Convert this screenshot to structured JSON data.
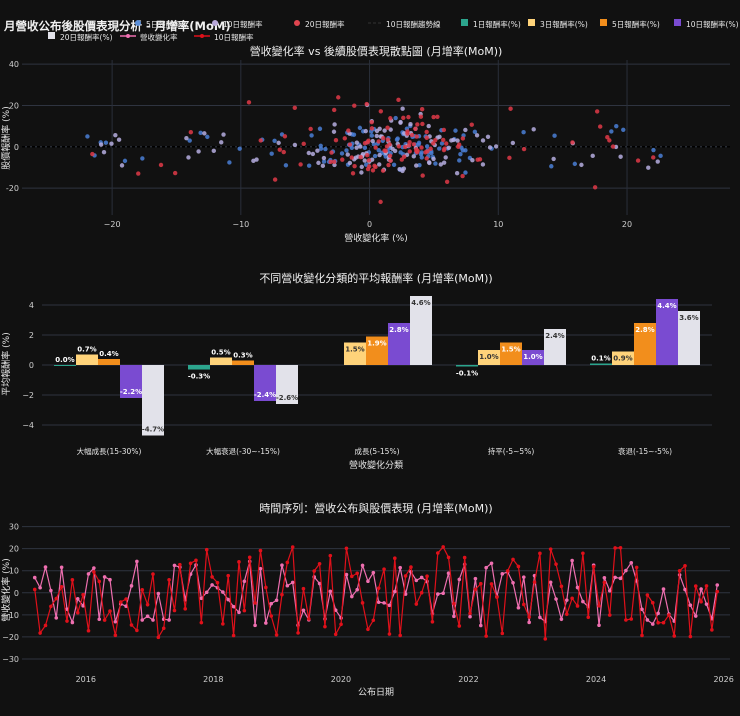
{
  "page_title": "月營收公布後股價表現分析 - 月增率(MoM)",
  "legend": [
    {
      "label": "5日報酬率",
      "kind": "dot",
      "color": "#5b8fd9"
    },
    {
      "label": "10日報酬率",
      "kind": "dot",
      "color": "#b8a8d9"
    },
    {
      "label": "20日報酬率",
      "kind": "dot",
      "color": "#e0454f"
    },
    {
      "label": "10日報酬趨勢線",
      "kind": "dash",
      "color": "#000000"
    },
    {
      "label": "1日報酬率(%)",
      "kind": "square",
      "color": "#2ca58d"
    },
    {
      "label": "3日報酬率(%)",
      "kind": "square",
      "color": "#ffd37a"
    },
    {
      "label": "5日報酬率(%)",
      "kind": "square",
      "color": "#f28e1c"
    },
    {
      "label": "10日報酬率(%)",
      "kind": "square",
      "color": "#7a4bd1"
    },
    {
      "label": "20日報酬率(%)",
      "kind": "square",
      "color": "#e2e2ea"
    },
    {
      "label": "營收變化率",
      "kind": "line",
      "color": "#ef6fb0"
    },
    {
      "label": "10日報酬率",
      "kind": "line",
      "color": "#e0101a"
    }
  ],
  "chart_data": [
    {
      "type": "scatter",
      "title": "營收變化率 vs 後續股價表現散點圖 (月增率(MoM))",
      "xlabel": "營收變化率 (%)",
      "ylabel": "股價報酬率 (%)",
      "xlim": [
        -27,
        28
      ],
      "ylim": [
        -33,
        42
      ],
      "xticks": [
        -20,
        -10,
        0,
        10,
        20
      ],
      "yticks": [
        -20,
        0,
        20,
        40
      ],
      "series": [
        {
          "name": "5日報酬率",
          "color": "#4a7fd6"
        },
        {
          "name": "10日報酬率",
          "color": "#b6aee0"
        },
        {
          "name": "20日報酬率",
          "color": "#e03a48"
        }
      ],
      "note": "points are densely clustered around revenue change -5..8% with returns -20..35%"
    },
    {
      "type": "bar",
      "title": "不同營收變化分類的平均報酬率 (月增率(MoM))",
      "xlabel": "營收變化分類",
      "ylabel": "平均報酬率 (%)",
      "ylim": [
        -5,
        5
      ],
      "yticks": [
        -4,
        -2,
        0,
        2,
        4
      ],
      "categories": [
        "大幅成長(15-30%)",
        "大幅衰退(-30~-15%)",
        "成長(5-15%)",
        "持平(-5~5%)",
        "衰退(-15~-5%)"
      ],
      "series": [
        {
          "name": "1日報酬率(%)",
          "color": "#2ca58d",
          "values": [
            0.0,
            -0.3,
            null,
            -0.1,
            0.1
          ],
          "labels": [
            "0.0%",
            "-0.3%",
            "",
            "-0.1%",
            "0.1%"
          ]
        },
        {
          "name": "3日報酬率(%)",
          "color": "#ffd37a",
          "values": [
            0.7,
            0.5,
            1.5,
            1.0,
            0.9
          ],
          "labels": [
            "0.7%",
            "0.5%",
            "1.5%",
            "1.0%",
            "0.9%"
          ]
        },
        {
          "name": "5日報酬率(%)",
          "color": "#f28e1c",
          "values": [
            0.4,
            0.3,
            1.9,
            1.5,
            2.8
          ],
          "labels": [
            "0.4%",
            "0.3%",
            "1.9%",
            "1.5%",
            "2.8%"
          ]
        },
        {
          "name": "10日報酬率(%)",
          "color": "#7a4bd1",
          "values": [
            -2.2,
            -2.4,
            2.8,
            1.0,
            4.4
          ],
          "labels": [
            "-2.2%",
            "-2.4%",
            "2.8%",
            "1.0%",
            "4.4%"
          ]
        },
        {
          "name": "20日報酬率(%)",
          "color": "#e2e2ea",
          "values": [
            -4.7,
            -2.6,
            4.6,
            2.4,
            3.6
          ],
          "labels": [
            "-4.7%",
            "-2.6%",
            "4.6%",
            "2.4%",
            "3.6%"
          ]
        }
      ]
    },
    {
      "type": "line",
      "title": "時間序列：營收公布與股價表現 (月增率(MoM))",
      "xlabel": "公布日期",
      "ylabel": "營收變化率 (%)",
      "xlim": [
        2015.0,
        2026.1
      ],
      "ylim": [
        -35,
        33
      ],
      "xticks": [
        2016,
        2018,
        2020,
        2022,
        2024,
        2026
      ],
      "yticks": [
        -30,
        -20,
        -10,
        0,
        10,
        20,
        30
      ],
      "series": [
        {
          "name": "營收變化率",
          "color": "#ef6fb0"
        },
        {
          "name": "10日報酬率",
          "color": "#e0101a"
        }
      ],
      "note": "monthly series from 2015.2 to 2025.9"
    }
  ]
}
